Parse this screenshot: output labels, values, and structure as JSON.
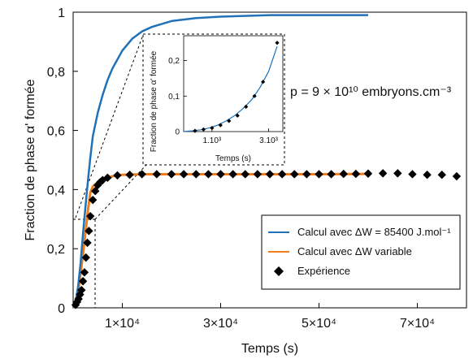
{
  "chart_data": [
    {
      "type": "line",
      "xlabel": "Temps (s)",
      "ylabel": "Fraction de phase α' formée",
      "xlim": [
        0,
        80000
      ],
      "ylim": [
        0,
        1
      ],
      "x_ticks": [
        {
          "value": 10000,
          "label": "1×10⁴"
        },
        {
          "value": 30000,
          "label": "3×10⁴"
        },
        {
          "value": 50000,
          "label": "5×10⁴"
        },
        {
          "value": 70000,
          "label": "7×10⁴"
        }
      ],
      "y_ticks": [
        {
          "value": 0,
          "label": "0"
        },
        {
          "value": 0.2,
          "label": "0,2"
        },
        {
          "value": 0.4,
          "label": "0,4"
        },
        {
          "value": 0.6,
          "label": "0,6"
        },
        {
          "value": 0.8,
          "label": "0,8"
        },
        {
          "value": 1,
          "label": "1"
        }
      ],
      "annotation": "p = 9 × 10¹⁰ embryons.cm⁻³",
      "legend": {
        "placement": "bottom-right"
      },
      "colors": {
        "blue": "#1f72b8",
        "orange": "#f07d1a",
        "black": "#000000"
      },
      "series": [
        {
          "name": "Calcul avec ΔW = 85400 J.mol⁻¹",
          "style": "line",
          "color": "#1f72b8",
          "x": [
            0,
            500,
            1000,
            1500,
            2000,
            2500,
            3000,
            3500,
            4000,
            5000,
            6000,
            7000,
            8000,
            10000,
            12000,
            14000,
            16000,
            20000,
            25000,
            30000,
            40000,
            50000,
            60000
          ],
          "y": [
            0,
            0.02,
            0.07,
            0.15,
            0.25,
            0.34,
            0.43,
            0.51,
            0.58,
            0.66,
            0.72,
            0.77,
            0.81,
            0.87,
            0.91,
            0.935,
            0.95,
            0.97,
            0.98,
            0.985,
            0.99,
            0.99,
            0.99
          ]
        },
        {
          "name": "Calcul avec ΔW variable",
          "style": "line",
          "color": "#f07d1a",
          "x": [
            0,
            1000,
            2000,
            3000,
            3500,
            4000,
            5000,
            6000,
            7000,
            8000,
            10000,
            14000,
            20000,
            30000,
            40000,
            50000,
            60000
          ],
          "y": [
            0,
            0.05,
            0.18,
            0.33,
            0.39,
            0.41,
            0.425,
            0.435,
            0.44,
            0.445,
            0.45,
            0.452,
            0.452,
            0.452,
            0.452,
            0.452,
            0.453
          ]
        },
        {
          "name": "Expérience",
          "style": "markers",
          "marker": "diamond",
          "color": "#000000",
          "x": [
            500,
            800,
            1100,
            1400,
            1700,
            2000,
            2300,
            2600,
            2900,
            3200,
            3500,
            4000,
            4500,
            5000,
            5500,
            6000,
            7000,
            9000,
            11500,
            14000,
            17000,
            20000,
            22500,
            25000,
            27500,
            30000,
            32500,
            35000,
            37500,
            40000,
            42500,
            45000,
            47500,
            50000,
            52500,
            55000,
            57500,
            60000,
            63000,
            66000,
            69000,
            72000,
            75000,
            78000
          ],
          "y": [
            0.01,
            0.02,
            0.03,
            0.045,
            0.06,
            0.09,
            0.12,
            0.17,
            0.22,
            0.26,
            0.31,
            0.365,
            0.395,
            0.415,
            0.425,
            0.432,
            0.44,
            0.448,
            0.45,
            0.452,
            0.452,
            0.452,
            0.452,
            0.452,
            0.452,
            0.452,
            0.452,
            0.452,
            0.452,
            0.452,
            0.452,
            0.452,
            0.452,
            0.452,
            0.452,
            0.453,
            0.453,
            0.454,
            0.455,
            0.455,
            0.452,
            0.45,
            0.45,
            0.445
          ]
        }
      ]
    },
    {
      "type": "line",
      "role": "inset",
      "xlabel": "Temps (s)",
      "ylabel": "Fraction de phase α' formée",
      "xlim": [
        0,
        3500
      ],
      "ylim": [
        0,
        0.27
      ],
      "x_ticks": [
        {
          "value": 1000,
          "label": "1.10³"
        },
        {
          "value": 3000,
          "label": "3.10³"
        }
      ],
      "y_ticks": [
        {
          "value": 0,
          "label": "0"
        },
        {
          "value": 0.1,
          "label": "0,1"
        },
        {
          "value": 0.2,
          "label": "0,2"
        }
      ],
      "series": [
        {
          "style": "line",
          "color": "#1f72b8",
          "x": [
            0,
            300,
            600,
            900,
            1200,
            1500,
            1800,
            2100,
            2400,
            2700,
            3000,
            3300
          ],
          "y": [
            0,
            0.002,
            0.005,
            0.01,
            0.018,
            0.03,
            0.045,
            0.065,
            0.09,
            0.125,
            0.17,
            0.24
          ]
        },
        {
          "style": "markers",
          "marker": "diamond",
          "color": "#000000",
          "x": [
            400,
            700,
            1000,
            1300,
            1600,
            1900,
            2200,
            2500,
            2800,
            3300
          ],
          "y": [
            0.002,
            0.006,
            0.01,
            0.018,
            0.03,
            0.045,
            0.07,
            0.1,
            0.14,
            0.25
          ]
        }
      ]
    }
  ]
}
